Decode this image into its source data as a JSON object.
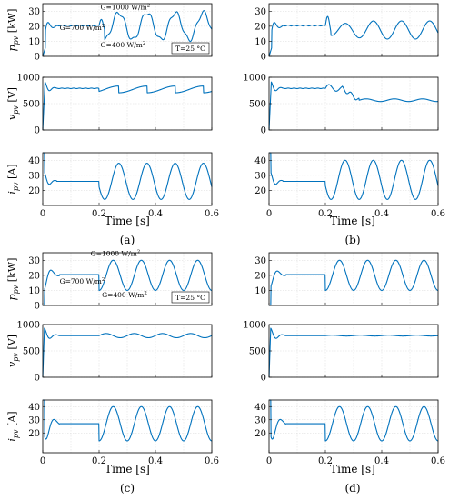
{
  "figure": {
    "captions": [
      "(a)",
      "(b)",
      "(c)",
      "(d)"
    ],
    "xlabel": "Time [s]"
  },
  "chart_data": [
    {
      "id": "a-p",
      "type": "line",
      "panel": "(a)",
      "ylabel_main": "p",
      "ylabel_sub": "pv",
      "ylabel_unit": " [kW]",
      "xlim": [
        0,
        0.6
      ],
      "ylim": [
        0,
        35
      ],
      "xticks": [],
      "yticks": [
        0,
        10,
        20,
        30
      ],
      "grid": true,
      "annotations": [
        {
          "text": "G=1000 W/m",
          "sup": "2",
          "x": 0.205,
          "y": 31
        },
        {
          "text": "G=700 W/m",
          "sup": "2",
          "x": 0.06,
          "y": 17.5
        },
        {
          "text": "G=400 W/m",
          "sup": "2",
          "x": 0.205,
          "y": 6
        }
      ],
      "note": "T=25 °C",
      "model": {
        "kind": "p",
        "steady": 20.5,
        "start_amp": 6,
        "amp": 9,
        "base": 20,
        "transient_amp": 8,
        "step_t": 0.2,
        "step_len": 0.02
      }
    },
    {
      "id": "b-p",
      "type": "line",
      "panel": "(b)",
      "ylabel_main": "",
      "ylabel_sub": "",
      "ylabel_unit": "",
      "xlim": [
        0,
        0.6
      ],
      "ylim": [
        0,
        35
      ],
      "xticks": [],
      "yticks": [
        0,
        10,
        20,
        30
      ],
      "grid": true,
      "annotations": [],
      "note": "",
      "model": {
        "kind": "p_b",
        "steady": 20.5,
        "start_amp": 6,
        "amp": 6,
        "base": 17.5,
        "transient_amp": 6,
        "step_t": 0.2,
        "step_len": 0.02
      }
    },
    {
      "id": "a-v",
      "type": "line",
      "panel": "(a)",
      "ylabel_main": "v",
      "ylabel_sub": "pv",
      "ylabel_unit": " [V]",
      "xlim": [
        0,
        0.6
      ],
      "ylim": [
        0,
        1000
      ],
      "xticks": [],
      "yticks": [
        0,
        500,
        1000
      ],
      "grid": true,
      "annotations": [],
      "note": "",
      "model": {
        "kind": "v",
        "steady": 790,
        "after": 770,
        "ripple": 80
      }
    },
    {
      "id": "b-v",
      "type": "line",
      "panel": "(b)",
      "ylabel_main": "",
      "ylabel_sub": "",
      "ylabel_unit": "",
      "xlim": [
        0,
        0.6
      ],
      "ylim": [
        0,
        1000
      ],
      "xticks": [],
      "yticks": [
        0,
        500,
        1000
      ],
      "grid": true,
      "annotations": [],
      "note": "",
      "model": {
        "kind": "v_b",
        "steady": 790,
        "after": 565,
        "ripple": 25
      }
    },
    {
      "id": "a-i",
      "type": "line",
      "panel": "(a)",
      "ylabel_main": "i",
      "ylabel_sub": "pv",
      "ylabel_unit": " [A]",
      "xlim": [
        0,
        0.6
      ],
      "ylim": [
        10,
        45
      ],
      "xticks": [
        0,
        0.2,
        0.4,
        0.6
      ],
      "yticks": [
        20,
        30,
        40
      ],
      "grid": true,
      "annotations": [],
      "note": "",
      "model": {
        "kind": "i",
        "steady": 26,
        "amp": 12,
        "base": 26
      }
    },
    {
      "id": "b-i",
      "type": "line",
      "panel": "(b)",
      "ylabel_main": "",
      "ylabel_sub": "",
      "ylabel_unit": "",
      "xlim": [
        0,
        0.6
      ],
      "ylim": [
        10,
        45
      ],
      "xticks": [
        0,
        0.2,
        0.4,
        0.6
      ],
      "yticks": [
        20,
        30,
        40
      ],
      "grid": true,
      "annotations": [],
      "note": "",
      "model": {
        "kind": "i",
        "steady": 26,
        "amp": 13,
        "base": 27
      }
    },
    {
      "id": "c-p",
      "type": "line",
      "panel": "(c)",
      "ylabel_main": "p",
      "ylabel_sub": "pv",
      "ylabel_unit": " [kW]",
      "xlim": [
        0,
        0.6
      ],
      "ylim": [
        0,
        35
      ],
      "xticks": [],
      "yticks": [
        0,
        10,
        20,
        30
      ],
      "grid": true,
      "annotations": [
        {
          "text": "G=1000 W/m",
          "sup": "2",
          "x": 0.17,
          "y": 33
        },
        {
          "text": "G=700 W/m",
          "sup": "2",
          "x": 0.06,
          "y": 14.5
        },
        {
          "text": "G=400 W/m",
          "sup": "2",
          "x": 0.21,
          "y": 5.5
        }
      ],
      "note": "T=25 °C",
      "model": {
        "kind": "p_c",
        "steady": 20.5,
        "start_amp": 10,
        "amp": 10,
        "base": 20,
        "step_t": 0.2
      }
    },
    {
      "id": "d-p",
      "type": "line",
      "panel": "(d)",
      "ylabel_main": "",
      "ylabel_sub": "",
      "ylabel_unit": "",
      "xlim": [
        0,
        0.6
      ],
      "ylim": [
        0,
        35
      ],
      "xticks": [],
      "yticks": [
        10,
        20,
        30
      ],
      "grid": true,
      "annotations": [],
      "note": "",
      "model": {
        "kind": "p_c",
        "steady": 20.5,
        "start_amp": 8,
        "amp": 10,
        "base": 20,
        "step_t": 0.2
      }
    },
    {
      "id": "c-v",
      "type": "line",
      "panel": "(c)",
      "ylabel_main": "v",
      "ylabel_sub": "pv",
      "ylabel_unit": " [V]",
      "xlim": [
        0,
        0.6
      ],
      "ylim": [
        0,
        1000
      ],
      "xticks": [],
      "yticks": [
        0,
        500,
        1000
      ],
      "grid": true,
      "annotations": [],
      "note": "",
      "model": {
        "kind": "v_c",
        "steady": 790,
        "after": 790,
        "ripple": 40
      }
    },
    {
      "id": "d-v",
      "type": "line",
      "panel": "(d)",
      "ylabel_main": "",
      "ylabel_sub": "",
      "ylabel_unit": "",
      "xlim": [
        0,
        0.6
      ],
      "ylim": [
        0,
        1000
      ],
      "xticks": [],
      "yticks": [
        0,
        500,
        1000
      ],
      "grid": true,
      "annotations": [],
      "note": "",
      "model": {
        "kind": "v_c",
        "steady": 790,
        "after": 790,
        "ripple": 8
      }
    },
    {
      "id": "c-i",
      "type": "line",
      "panel": "(c)",
      "ylabel_main": "i",
      "ylabel_sub": "pv",
      "ylabel_unit": " [A]",
      "xlim": [
        0,
        0.6
      ],
      "ylim": [
        5,
        45
      ],
      "xticks": [
        0,
        0.2,
        0.4,
        0.6
      ],
      "yticks": [
        20,
        30,
        40
      ],
      "grid": true,
      "annotations": [],
      "note": "",
      "model": {
        "kind": "i_c",
        "steady": 27,
        "amp": 13,
        "base": 27
      }
    },
    {
      "id": "d-i",
      "type": "line",
      "panel": "(d)",
      "ylabel_main": "",
      "ylabel_sub": "",
      "ylabel_unit": "",
      "xlim": [
        0,
        0.6
      ],
      "ylim": [
        5,
        45
      ],
      "xticks": [
        0,
        0.2,
        0.4,
        0.6
      ],
      "yticks": [
        20,
        30,
        40
      ],
      "grid": true,
      "annotations": [],
      "note": "",
      "model": {
        "kind": "i_c",
        "steady": 27,
        "amp": 13,
        "base": 27
      }
    }
  ],
  "colors": {
    "series": "#0072bd",
    "grid": "#d9d9d9",
    "axis": "#000000"
  }
}
